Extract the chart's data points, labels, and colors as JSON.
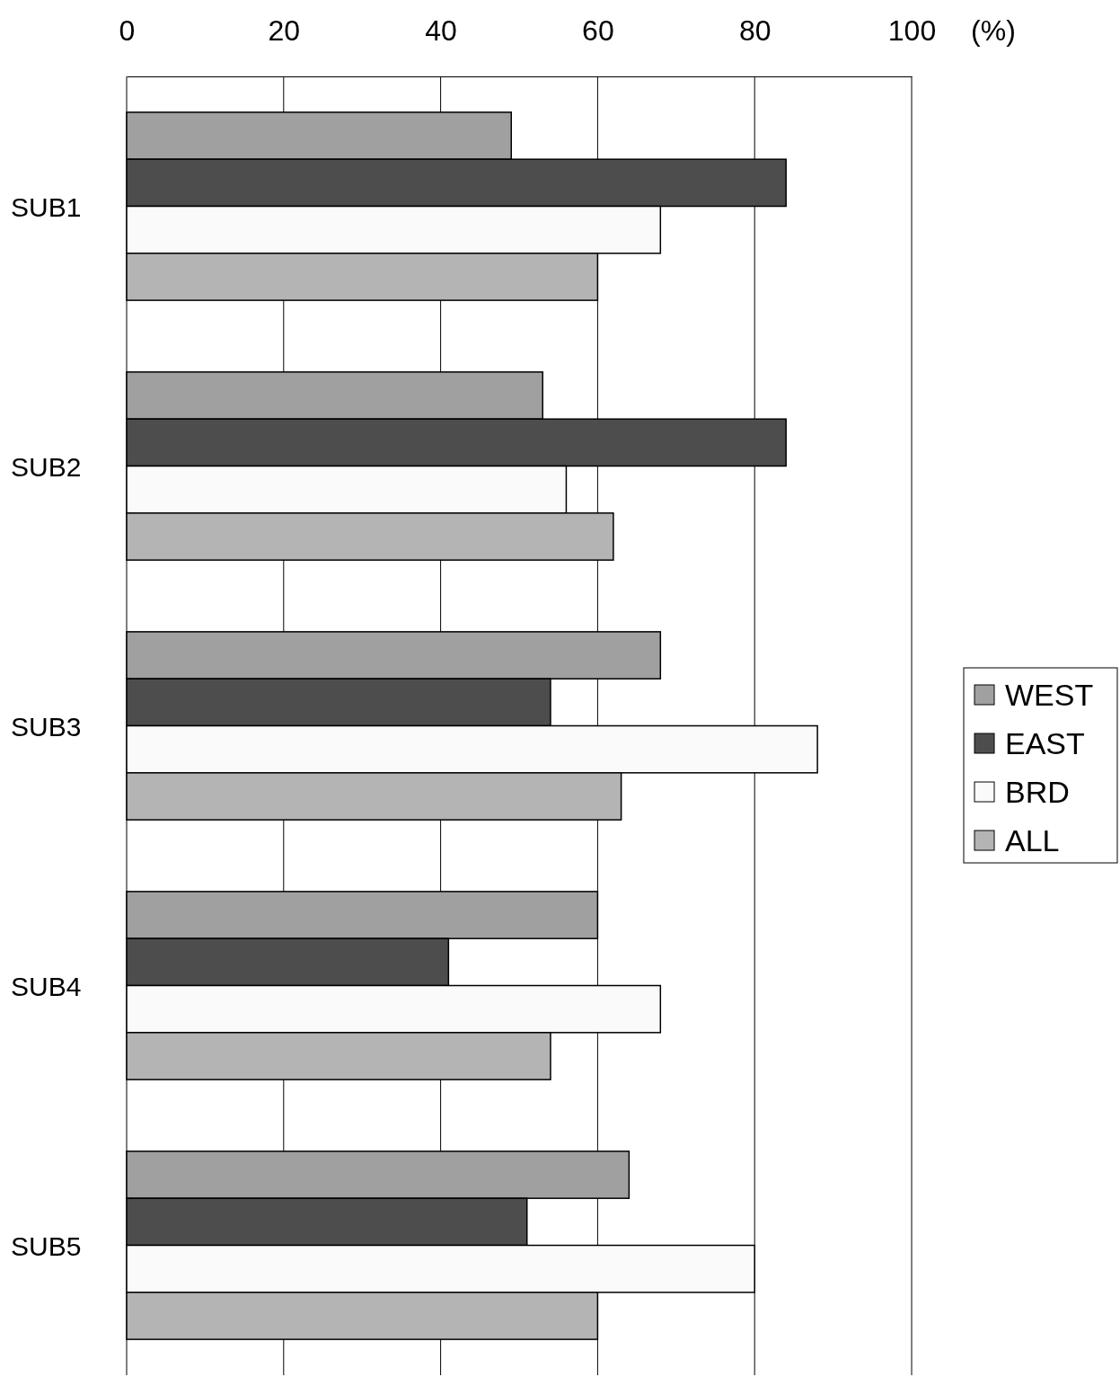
{
  "chart_data": {
    "type": "bar",
    "orientation": "horizontal",
    "xlabel": "(%)",
    "categories": [
      "SUB1",
      "SUB2",
      "SUB3",
      "SUB4",
      "SUB5"
    ],
    "series": [
      {
        "name": "WEST",
        "color": "#a0a0a0",
        "values": [
          49,
          53,
          68,
          60,
          64
        ]
      },
      {
        "name": "EAST",
        "color": "#4d4d4d",
        "values": [
          84,
          84,
          54,
          41,
          51
        ]
      },
      {
        "name": "BRD",
        "color": "#fafafa",
        "values": [
          68,
          56,
          88,
          68,
          80
        ]
      },
      {
        "name": "ALL",
        "color": "#b4b4b4",
        "values": [
          60,
          62,
          63,
          54,
          60
        ]
      }
    ],
    "xlim": [
      0,
      100
    ],
    "xticks": [
      0,
      20,
      40,
      60,
      80,
      100
    ],
    "grid": "x",
    "legend": "right"
  }
}
